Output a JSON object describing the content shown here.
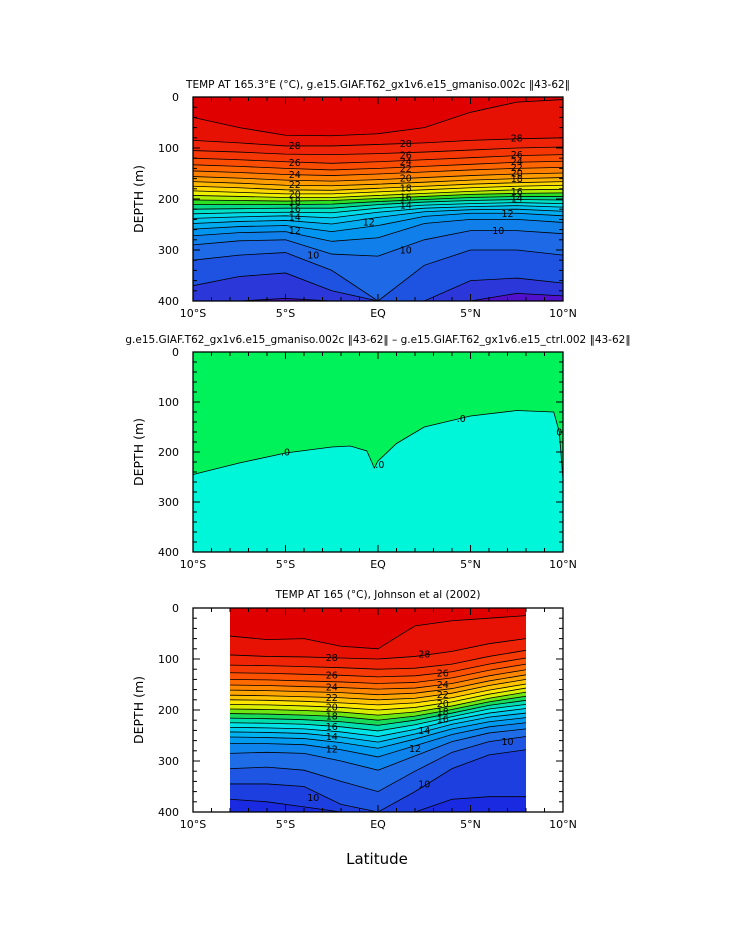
{
  "figure": {
    "xlabel": "Latitude"
  },
  "chart_data": [
    {
      "type": "heatmap",
      "subtype": "filled-contour",
      "title": "TEMP AT 165.3°E (°C), g.e15.GIAF.T62_gx1v6.e15_gmaniso.002c ‖43-62‖",
      "ylabel": "DEPTH (m)",
      "xlabel": "",
      "xlim": [
        -10,
        10
      ],
      "ylim": [
        400,
        0
      ],
      "y_reversed": true,
      "x_data_extent": [
        -10,
        10
      ],
      "x_ticks": [
        -10,
        -5,
        0,
        5,
        10
      ],
      "x_tick_labels": [
        "10°S",
        "5°S",
        "EQ",
        "5°N",
        "10°N"
      ],
      "y_ticks": [
        0,
        100,
        200,
        300,
        400
      ],
      "y_tick_labels": [
        "0",
        "100",
        "200",
        "300",
        "400"
      ],
      "contour_interval": 1,
      "x": [
        -10,
        -7.5,
        -5,
        -2.5,
        0,
        2.5,
        5,
        7.5,
        10
      ],
      "series": [
        {
          "isotherm": 29,
          "depth": [
            40,
            60,
            75,
            76,
            72,
            60,
            30,
            10,
            5
          ]
        },
        {
          "isotherm": 28,
          "depth": [
            85,
            90,
            96,
            96,
            93,
            90,
            85,
            82,
            80
          ]
        },
        {
          "isotherm": 27,
          "depth": [
            105,
            108,
            112,
            113,
            111,
            108,
            104,
            100,
            98
          ]
        },
        {
          "isotherm": 26,
          "depth": [
            120,
            123,
            127,
            130,
            127,
            123,
            119,
            115,
            113
          ]
        },
        {
          "isotherm": 25,
          "depth": [
            133,
            136,
            140,
            143,
            140,
            136,
            132,
            128,
            126
          ]
        },
        {
          "isotherm": 24,
          "depth": [
            145,
            148,
            152,
            154,
            151,
            147,
            143,
            140,
            138
          ]
        },
        {
          "isotherm": 23,
          "depth": [
            156,
            159,
            163,
            165,
            162,
            158,
            154,
            151,
            149
          ]
        },
        {
          "isotherm": 22,
          "depth": [
            166,
            169,
            173,
            174,
            171,
            167,
            163,
            160,
            158
          ]
        },
        {
          "isotherm": 21,
          "depth": [
            175,
            178,
            182,
            183,
            179,
            175,
            171,
            168,
            166
          ]
        },
        {
          "isotherm": 20,
          "depth": [
            184,
            187,
            190,
            190,
            186,
            182,
            178,
            175,
            173
          ]
        },
        {
          "isotherm": 19,
          "depth": [
            193,
            195,
            197,
            197,
            193,
            189,
            185,
            182,
            181
          ]
        },
        {
          "isotherm": 18,
          "depth": [
            202,
            203,
            204,
            203,
            199,
            195,
            191,
            189,
            188
          ]
        },
        {
          "isotherm": 17,
          "depth": [
            211,
            211,
            211,
            210,
            205,
            201,
            197,
            195,
            195
          ]
        },
        {
          "isotherm": 16,
          "depth": [
            220,
            219,
            218,
            218,
            211,
            206,
            203,
            201,
            202
          ]
        },
        {
          "isotherm": 15,
          "depth": [
            229,
            227,
            226,
            227,
            218,
            212,
            209,
            207,
            209
          ]
        },
        {
          "isotherm": 14,
          "depth": [
            238,
            235,
            233,
            237,
            226,
            218,
            215,
            213,
            216
          ]
        },
        {
          "isotherm": 13,
          "depth": [
            248,
            244,
            242,
            249,
            236,
            225,
            221,
            220,
            224
          ]
        },
        {
          "isotherm": 12,
          "depth": [
            259,
            254,
            252,
            264,
            252,
            234,
            228,
            228,
            233
          ]
        },
        {
          "isotherm": 11,
          "depth": [
            272,
            266,
            264,
            283,
            276,
            248,
            240,
            240,
            246
          ]
        },
        {
          "isotherm": 10,
          "depth": [
            290,
            282,
            280,
            308,
            312,
            280,
            262,
            262,
            268
          ]
        },
        {
          "isotherm": 9,
          "depth": [
            320,
            310,
            305,
            340,
            400,
            330,
            300,
            300,
            310
          ]
        },
        {
          "isotherm": 8,
          "depth": [
            370,
            352,
            345,
            380,
            400,
            400,
            360,
            355,
            365
          ]
        },
        {
          "isotherm": 7,
          "depth": [
            400,
            400,
            395,
            400,
            400,
            400,
            400,
            385,
            390
          ]
        }
      ],
      "contour_labels": [
        {
          "text": "28",
          "x": -4.5,
          "depth": 95
        },
        {
          "text": "26",
          "x": -4.5,
          "depth": 128
        },
        {
          "text": "24",
          "x": -4.5,
          "depth": 152
        },
        {
          "text": "22",
          "x": -4.5,
          "depth": 172
        },
        {
          "text": "20",
          "x": -4.5,
          "depth": 190
        },
        {
          "text": "18",
          "x": -4.5,
          "depth": 204
        },
        {
          "text": "16",
          "x": -4.5,
          "depth": 219
        },
        {
          "text": "14",
          "x": -4.5,
          "depth": 235
        },
        {
          "text": "12",
          "x": -4.5,
          "depth": 262
        },
        {
          "text": "10",
          "x": -3.5,
          "depth": 310
        },
        {
          "text": "28",
          "x": 1.5,
          "depth": 91
        },
        {
          "text": "26",
          "x": 1.5,
          "depth": 114
        },
        {
          "text": "24",
          "x": 1.5,
          "depth": 126
        },
        {
          "text": "22",
          "x": 1.5,
          "depth": 140
        },
        {
          "text": "20",
          "x": 1.5,
          "depth": 159
        },
        {
          "text": "18",
          "x": 1.5,
          "depth": 178
        },
        {
          "text": "16",
          "x": 1.5,
          "depth": 196
        },
        {
          "text": "14",
          "x": 1.5,
          "depth": 212
        },
        {
          "text": "12",
          "x": -0.5,
          "depth": 245
        },
        {
          "text": "10",
          "x": 1.5,
          "depth": 300
        },
        {
          "text": "28",
          "x": 7.5,
          "depth": 80
        },
        {
          "text": "26",
          "x": 7.5,
          "depth": 113
        },
        {
          "text": "24",
          "x": 7.5,
          "depth": 126
        },
        {
          "text": "22",
          "x": 7.5,
          "depth": 138
        },
        {
          "text": "20",
          "x": 7.5,
          "depth": 149
        },
        {
          "text": "18",
          "x": 7.5,
          "depth": 160
        },
        {
          "text": "16",
          "x": 7.5,
          "depth": 185
        },
        {
          "text": "14",
          "x": 7.5,
          "depth": 198
        },
        {
          "text": "12",
          "x": 7,
          "depth": 228
        },
        {
          "text": "10",
          "x": 6.5,
          "depth": 262
        }
      ],
      "colors": {
        "warmest": "#e00000",
        "coldest": "#5010cc"
      }
    },
    {
      "type": "heatmap",
      "subtype": "filled-contour",
      "title": "g.e15.GIAF.T62_gx1v6.e15_gmaniso.002c ‖43-62‖ – g.e15.GIAF.T62_gx1v6.e15_ctrl.002 ‖43-62‖",
      "ylabel": "DEPTH (m)",
      "xlabel": "",
      "xlim": [
        -10,
        10
      ],
      "ylim": [
        400,
        0
      ],
      "y_reversed": true,
      "x_data_extent": [
        -10,
        10
      ],
      "x_ticks": [
        -10,
        -5,
        0,
        5,
        10
      ],
      "x_tick_labels": [
        "10°S",
        "5°S",
        "EQ",
        "5°N",
        "10°N"
      ],
      "y_ticks": [
        0,
        100,
        200,
        300,
        400
      ],
      "y_tick_labels": [
        "0",
        "100",
        "200",
        "300",
        "400"
      ],
      "x": [
        -10,
        -7.5,
        -5,
        -2.5,
        -1.5,
        -0.6,
        -0.2,
        0,
        1,
        2.5,
        5,
        7.5,
        9.5,
        9.8,
        10
      ],
      "series": [
        {
          "isotherm": 0,
          "depth": [
            245,
            222,
            202,
            190,
            188,
            198,
            232,
            218,
            183,
            150,
            128,
            117,
            120,
            160,
            255
          ]
        }
      ],
      "contour_labels": [
        {
          "text": ".0",
          "x": -5,
          "depth": 200
        },
        {
          "text": ".0",
          "x": 0.1,
          "depth": 225
        },
        {
          "text": ".0",
          "x": 4.5,
          "depth": 133
        },
        {
          "text": "0",
          "x": 9.8,
          "depth": 160
        }
      ],
      "colors": {
        "upper": "#00f25a",
        "lower": "#00f6d8"
      }
    },
    {
      "type": "heatmap",
      "subtype": "filled-contour",
      "title": "TEMP AT 165 (°C), Johnson et al (2002)",
      "ylabel": "DEPTH (m)",
      "xlabel": "Latitude",
      "xlim": [
        -10,
        10
      ],
      "ylim": [
        400,
        0
      ],
      "y_reversed": true,
      "x_data_extent": [
        -8,
        8
      ],
      "x_ticks": [
        -10,
        -5,
        0,
        5,
        10
      ],
      "x_tick_labels": [
        "10°S",
        "5°S",
        "EQ",
        "5°N",
        "10°N"
      ],
      "y_ticks": [
        0,
        100,
        200,
        300,
        400
      ],
      "y_tick_labels": [
        "0",
        "100",
        "200",
        "300",
        "400"
      ],
      "contour_interval": 1,
      "x": [
        -8,
        -6,
        -4,
        -2,
        0,
        2,
        4,
        6,
        8
      ],
      "series": [
        {
          "isotherm": 29,
          "depth": [
            55,
            62,
            60,
            75,
            80,
            35,
            25,
            20,
            15
          ]
        },
        {
          "isotherm": 28,
          "depth": [
            92,
            95,
            96,
            98,
            100,
            95,
            85,
            70,
            60
          ]
        },
        {
          "isotherm": 27,
          "depth": [
            112,
            113,
            115,
            117,
            120,
            118,
            110,
            95,
            83
          ]
        },
        {
          "isotherm": 26,
          "depth": [
            127,
            128,
            130,
            132,
            135,
            133,
            125,
            110,
            98
          ]
        },
        {
          "isotherm": 25,
          "depth": [
            140,
            141,
            143,
            145,
            148,
            146,
            137,
            122,
            110
          ]
        },
        {
          "isotherm": 24,
          "depth": [
            151,
            152,
            154,
            156,
            159,
            157,
            148,
            133,
            121
          ]
        },
        {
          "isotherm": 23,
          "depth": [
            161,
            162,
            164,
            166,
            170,
            167,
            158,
            143,
            131
          ]
        },
        {
          "isotherm": 22,
          "depth": [
            171,
            172,
            174,
            176,
            180,
            177,
            167,
            152,
            140
          ]
        },
        {
          "isotherm": 21,
          "depth": [
            180,
            181,
            183,
            186,
            190,
            186,
            176,
            161,
            149
          ]
        },
        {
          "isotherm": 20,
          "depth": [
            189,
            190,
            192,
            195,
            200,
            195,
            184,
            169,
            157
          ]
        },
        {
          "isotherm": 19,
          "depth": [
            198,
            199,
            201,
            204,
            210,
            204,
            192,
            177,
            165
          ]
        },
        {
          "isotherm": 18,
          "depth": [
            207,
            208,
            210,
            213,
            220,
            212,
            199,
            184,
            173
          ]
        },
        {
          "isotherm": 17,
          "depth": [
            216,
            217,
            219,
            223,
            230,
            220,
            206,
            191,
            181
          ]
        },
        {
          "isotherm": 16,
          "depth": [
            225,
            226,
            228,
            233,
            241,
            229,
            213,
            198,
            189
          ]
        },
        {
          "isotherm": 15,
          "depth": [
            234,
            235,
            237,
            243,
            252,
            238,
            220,
            206,
            197
          ]
        },
        {
          "isotherm": 14,
          "depth": [
            243,
            244,
            246,
            253,
            263,
            247,
            228,
            214,
            206
          ]
        },
        {
          "isotherm": 13,
          "depth": [
            253,
            254,
            256,
            264,
            275,
            257,
            237,
            223,
            215
          ]
        },
        {
          "isotherm": 12,
          "depth": [
            266,
            266,
            268,
            278,
            292,
            270,
            248,
            233,
            225
          ]
        },
        {
          "isotherm": 11,
          "depth": [
            285,
            283,
            285,
            300,
            318,
            290,
            262,
            245,
            237
          ]
        },
        {
          "isotherm": 10,
          "depth": [
            315,
            312,
            318,
            340,
            360,
            320,
            283,
            262,
            252
          ]
        },
        {
          "isotherm": 9,
          "depth": [
            345,
            345,
            350,
            385,
            400,
            360,
            315,
            288,
            278
          ]
        },
        {
          "isotherm": 8,
          "depth": [
            375,
            380,
            390,
            400,
            400,
            400,
            375,
            370,
            370
          ]
        }
      ],
      "contour_labels": [
        {
          "text": "28",
          "x": -2.5,
          "depth": 97
        },
        {
          "text": "28",
          "x": 2.5,
          "depth": 90
        },
        {
          "text": "26",
          "x": -2.5,
          "depth": 131
        },
        {
          "text": "24",
          "x": -2.5,
          "depth": 155
        },
        {
          "text": "22",
          "x": -2.5,
          "depth": 175
        },
        {
          "text": "20",
          "x": -2.5,
          "depth": 194
        },
        {
          "text": "18",
          "x": -2.5,
          "depth": 212
        },
        {
          "text": "16",
          "x": -2.5,
          "depth": 232
        },
        {
          "text": "14",
          "x": -2.5,
          "depth": 252
        },
        {
          "text": "12",
          "x": -2.5,
          "depth": 276
        },
        {
          "text": "26",
          "x": 3.5,
          "depth": 127
        },
        {
          "text": "24",
          "x": 3.5,
          "depth": 150
        },
        {
          "text": "22",
          "x": 3.5,
          "depth": 170
        },
        {
          "text": "20",
          "x": 3.5,
          "depth": 187
        },
        {
          "text": "18",
          "x": 3.5,
          "depth": 203
        },
        {
          "text": "16",
          "x": 3.5,
          "depth": 218
        },
        {
          "text": "14",
          "x": 2.5,
          "depth": 240
        },
        {
          "text": "12",
          "x": 2,
          "depth": 275
        },
        {
          "text": "10",
          "x": -3.5,
          "depth": 372
        },
        {
          "text": "10",
          "x": 2.5,
          "depth": 345
        },
        {
          "text": "10",
          "x": 7,
          "depth": 262
        }
      ],
      "colors": {
        "warmest": "#e00000",
        "coldest": "#1a2ae0"
      }
    }
  ]
}
